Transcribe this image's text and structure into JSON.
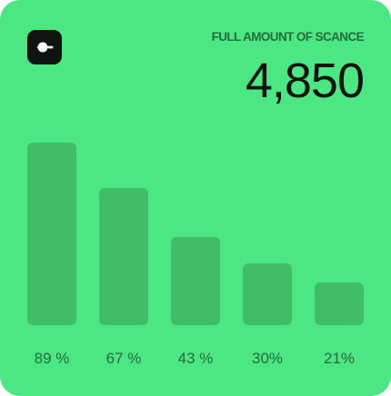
{
  "header": {
    "title": "FULL AMOUNT OF SCANCE",
    "total": "4,850"
  },
  "logo": {
    "icon": "toggle-pointer-icon"
  },
  "colors": {
    "background": "#4be782",
    "bar": "#41bd68",
    "label": "#246b3e",
    "ink": "#0f1411"
  },
  "chart_data": {
    "type": "bar",
    "title": "",
    "xlabel": "",
    "ylabel": "",
    "categories": [
      "89 %",
      "67 %",
      "43 %",
      "30%",
      "21%"
    ],
    "values": [
      89,
      67,
      43,
      30,
      21
    ],
    "ylim": [
      0,
      89
    ],
    "grid": false,
    "legend": "none"
  }
}
